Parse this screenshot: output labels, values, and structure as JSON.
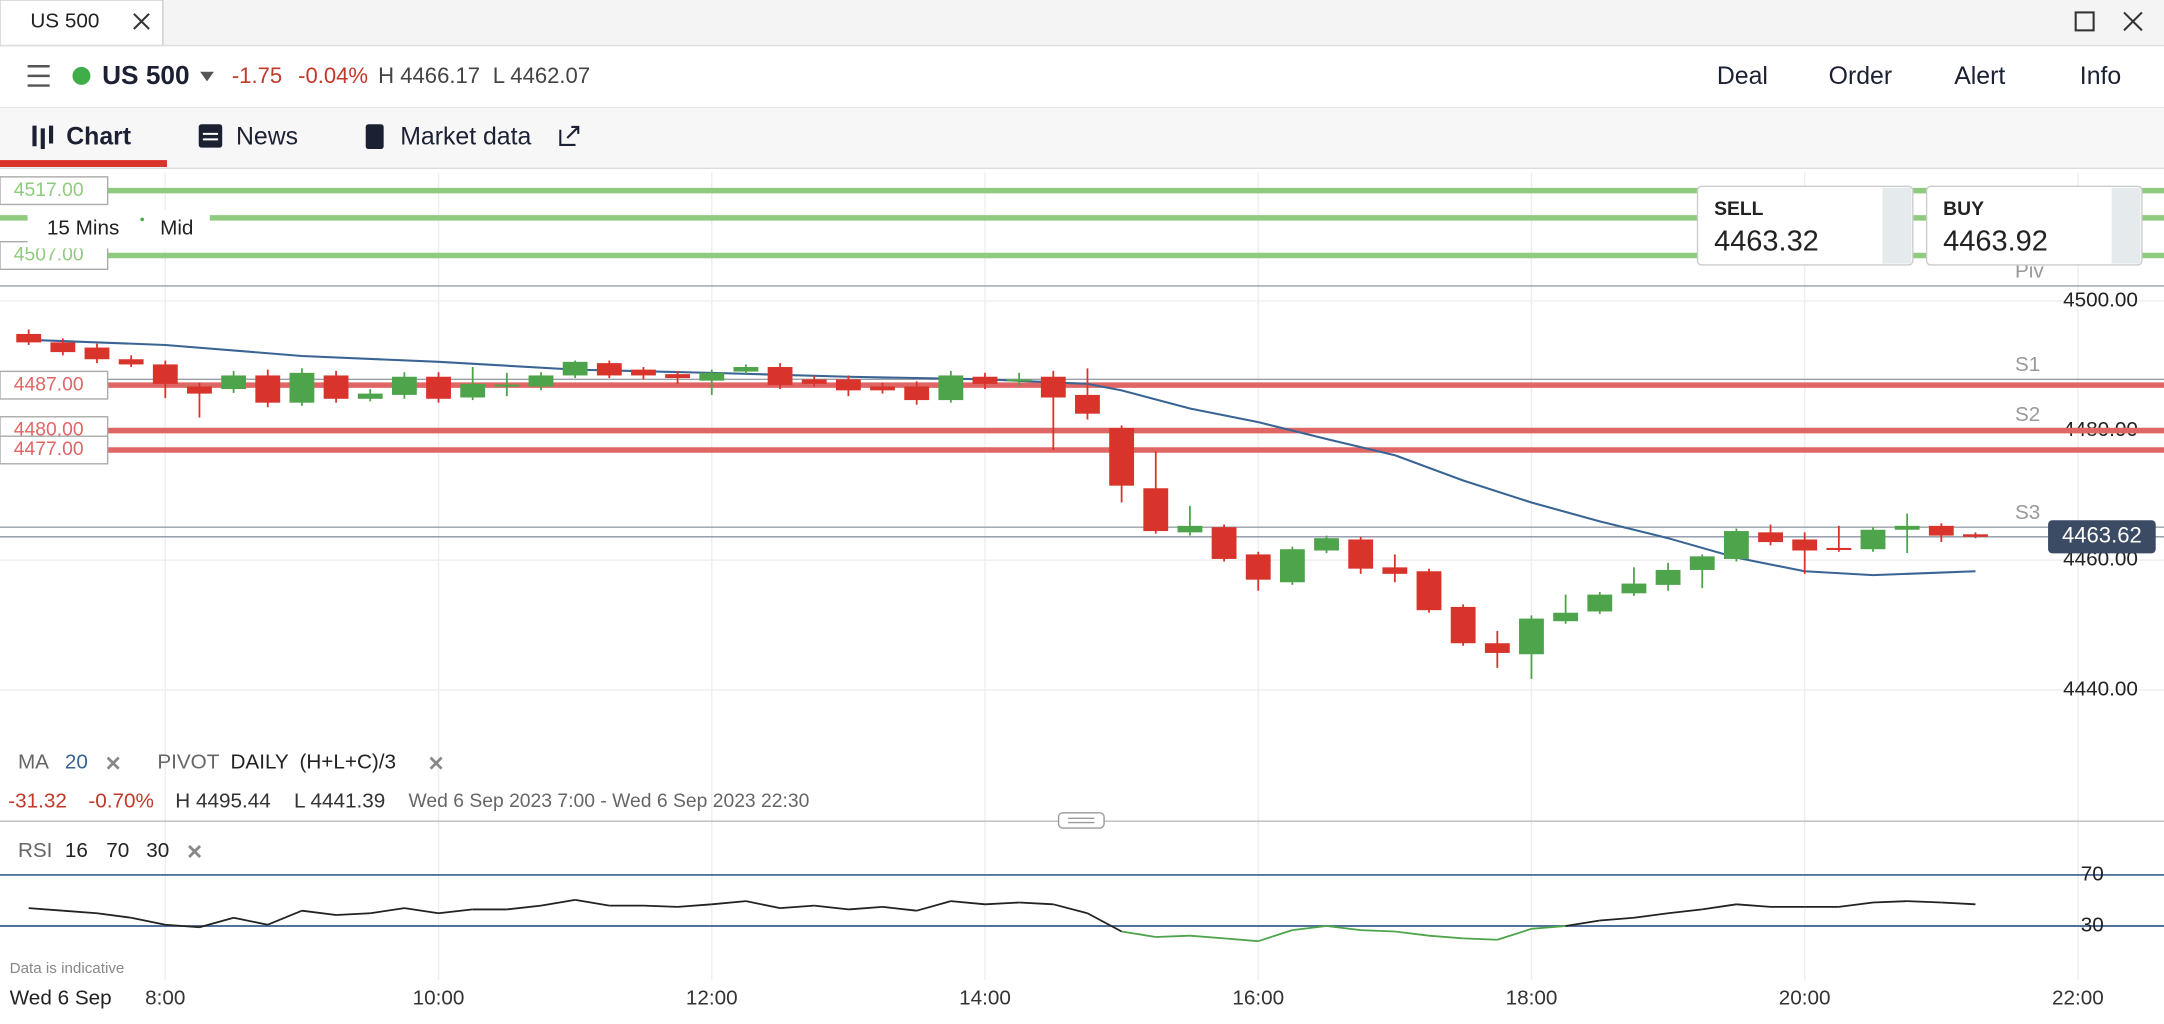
{
  "tab": {
    "title": "US 500"
  },
  "header": {
    "symbol": "US 500",
    "change": "-1.75",
    "change_pct": "-0.04%",
    "high": "H 4466.17",
    "low": "L 4462.07",
    "actions": [
      "Deal",
      "Order",
      "Alert",
      "Info"
    ]
  },
  "nav": [
    "Chart",
    "News",
    "Market data"
  ],
  "toolbar": {
    "interval": "15 Mins",
    "price_type": "Mid"
  },
  "quote": {
    "sell_label": "SELL",
    "sell": "4463.32",
    "buy_label": "BUY",
    "buy": "4463.92"
  },
  "summary": {
    "change": "-31.32",
    "change_pct": "-0.70%",
    "high": "H 4495.44",
    "low": "L 4441.39",
    "range": "Wed 6 Sep 2023 7:00 - Wed 6 Sep 2023 22:30"
  },
  "footer": {
    "note": "Data is indicative",
    "date": "Wed 6 Sep"
  },
  "chart_data": [
    {
      "type": "candlestick",
      "up_color": "#4ea44a",
      "down_color": "#d9342b",
      "x": [
        7,
        7.25,
        7.5,
        7.75,
        8,
        8.25,
        8.5,
        8.75,
        9,
        9.25,
        9.5,
        9.75,
        10,
        10.25,
        10.5,
        10.75,
        11,
        11.25,
        11.5,
        11.75,
        12,
        12.25,
        12.5,
        12.75,
        13,
        13.25,
        13.5,
        13.75,
        14,
        14.25,
        14.5,
        14.75,
        15,
        15.25,
        15.5,
        15.75,
        16,
        16.25,
        16.5,
        16.75,
        17,
        17.25,
        17.5,
        17.75,
        18,
        18.25,
        18.5,
        18.75,
        19,
        19.25,
        19.5,
        19.75,
        20,
        20.25,
        20.5,
        20.75,
        21,
        21.25
      ],
      "open": [
        4494.9,
        4493.6,
        4492.8,
        4491.0,
        4490.2,
        4486.8,
        4486.4,
        4488.5,
        4484.3,
        4488.5,
        4484.9,
        4485.5,
        4488.3,
        4485.1,
        4487.0,
        4486.8,
        4488.5,
        4490.4,
        4489.4,
        4488.7,
        4487.7,
        4489.1,
        4489.8,
        4487.9,
        4487.9,
        4486.8,
        4486.8,
        4484.7,
        4488.3,
        4487.6,
        4488.3,
        4485.5,
        4480.4,
        4471.1,
        4464.3,
        4465.1,
        4460.9,
        4456.6,
        4461.5,
        4463.2,
        4458.9,
        4458.3,
        4452.8,
        4447.2,
        4445.5,
        4450.6,
        4452.1,
        4454.9,
        4456.2,
        4458.5,
        4460.2,
        4464.3,
        4463.2,
        4461.9,
        4461.7,
        4464.7,
        4465.3,
        4464.0
      ],
      "high": [
        4495.6,
        4494.2,
        4493.4,
        4491.6,
        4490.8,
        4487.4,
        4489.2,
        4489.4,
        4489.6,
        4489.2,
        4486.4,
        4489.0,
        4489.0,
        4489.8,
        4488.9,
        4489.0,
        4490.8,
        4490.8,
        4489.8,
        4489.2,
        4489.4,
        4490.2,
        4490.4,
        4488.5,
        4488.5,
        4487.4,
        4487.6,
        4489.2,
        4488.9,
        4488.9,
        4489.2,
        4489.6,
        4480.8,
        4476.8,
        4468.4,
        4465.5,
        4461.3,
        4462.1,
        4463.8,
        4463.6,
        4460.9,
        4458.7,
        4453.2,
        4449.1,
        4451.5,
        4454.7,
        4455.1,
        4458.9,
        4459.6,
        4460.9,
        4464.9,
        4465.5,
        4464.3,
        4465.3,
        4465.1,
        4467.2,
        4465.7,
        4464.3
      ],
      "low": [
        4493.2,
        4491.6,
        4490.4,
        4489.8,
        4485.0,
        4482.0,
        4485.8,
        4483.6,
        4483.8,
        4484.3,
        4484.5,
        4484.9,
        4484.3,
        4484.7,
        4485.3,
        4486.2,
        4488.1,
        4488.1,
        4487.9,
        4487.2,
        4485.5,
        4488.7,
        4486.4,
        4486.8,
        4485.3,
        4485.7,
        4484.0,
        4484.3,
        4486.4,
        4487.0,
        4477.0,
        4481.7,
        4468.9,
        4464.1,
        4463.8,
        4459.8,
        4455.3,
        4456.2,
        4461.1,
        4457.9,
        4456.6,
        4451.9,
        4446.8,
        4443.4,
        4441.7,
        4450.2,
        4451.7,
        4454.5,
        4455.3,
        4455.7,
        4459.8,
        4462.3,
        4457.9,
        4461.3,
        4461.3,
        4461.1,
        4462.8,
        4463.4
      ],
      "close": [
        4493.6,
        4492.1,
        4491.0,
        4490.2,
        4487.2,
        4485.7,
        4488.5,
        4484.3,
        4488.9,
        4484.9,
        4485.7,
        4488.3,
        4484.9,
        4487.2,
        4487.1,
        4488.5,
        4490.6,
        4488.5,
        4488.5,
        4488.1,
        4488.9,
        4489.8,
        4487.0,
        4487.2,
        4486.2,
        4486.2,
        4484.7,
        4488.5,
        4487.2,
        4487.9,
        4485.1,
        4482.6,
        4471.5,
        4464.5,
        4465.3,
        4460.2,
        4457.0,
        4461.7,
        4463.4,
        4458.7,
        4457.9,
        4452.3,
        4447.2,
        4445.7,
        4451.0,
        4451.9,
        4454.7,
        4456.4,
        4458.5,
        4460.6,
        4464.5,
        4462.8,
        4461.5,
        4461.7,
        4464.7,
        4465.3,
        4463.8,
        4463.6
      ],
      "ma": {
        "color": "#3a6493",
        "x": [
          7,
          8,
          9,
          10,
          11,
          12,
          13,
          14,
          14.75,
          15,
          15.5,
          16,
          16.5,
          17,
          17.5,
          18,
          18.5,
          19,
          19.5,
          20,
          20.5,
          21,
          21.25
        ],
        "values": [
          4494.0,
          4493.2,
          4491.5,
          4490.6,
          4489.4,
          4488.9,
          4488.3,
          4487.9,
          4487.2,
          4486.2,
          4483.4,
          4481.3,
          4478.7,
          4476.2,
          4472.3,
          4468.9,
          4466.0,
          4463.4,
          4460.4,
          4458.3,
          4457.7,
          4458.1,
          4458.3
        ]
      },
      "indicators": [
        {
          "name": "MA",
          "params": [
            20
          ]
        },
        {
          "name": "PIVOT",
          "params": [
            "DAILY",
            "(H+L+C)/3"
          ]
        }
      ],
      "levels": [
        {
          "value": 4517,
          "label": "4517.00",
          "color": "#8fcb7f"
        },
        {
          "value": 4512.8,
          "color": "#8fcb7f"
        },
        {
          "value": 4507,
          "label": "4507.00",
          "color": "#8fcb7f"
        },
        {
          "value": 4487,
          "label": "4487.00",
          "color": "#e06666"
        },
        {
          "value": 4480,
          "label": "4480.00",
          "color": "#e06666"
        },
        {
          "value": 4477,
          "label": "4477.00",
          "color": "#e06666"
        }
      ],
      "pivots": [
        {
          "name": "Piv",
          "value": 4502.3
        },
        {
          "name": "S1",
          "value": 4487.9
        },
        {
          "name": "S2",
          "value": 4480.2
        },
        {
          "name": "S3",
          "value": 4465.1
        }
      ],
      "last_price": {
        "value": 4463.62,
        "label": "4463.62"
      },
      "xlim": [
        6.79,
        22.63
      ],
      "xticks": [
        {
          "value": 8,
          "label": "8:00"
        },
        {
          "value": 10,
          "label": "10:00"
        },
        {
          "value": 12,
          "label": "12:00"
        },
        {
          "value": 14,
          "label": "14:00"
        },
        {
          "value": 16,
          "label": "16:00"
        },
        {
          "value": 18,
          "label": "18:00"
        },
        {
          "value": 20,
          "label": "20:00"
        },
        {
          "value": 22,
          "label": "22:00"
        }
      ],
      "ylim": [
        4420.4,
        4519.8
      ],
      "yticks": [
        {
          "value": 4500,
          "label": "4500.00"
        },
        {
          "value": 4480,
          "label": "4480.00"
        },
        {
          "value": 4460,
          "label": "4460.00"
        },
        {
          "value": 4440,
          "label": "4440.00"
        }
      ],
      "grid": true
    },
    {
      "type": "line",
      "name": "RSI",
      "params": [
        16,
        70,
        30
      ],
      "color": "#222222",
      "oversold_color": "#4ea44a",
      "level_color": "#3a5f8a",
      "x": [
        7,
        7.25,
        7.5,
        7.75,
        8,
        8.25,
        8.5,
        8.75,
        9,
        9.25,
        9.5,
        9.75,
        10,
        10.25,
        10.5,
        10.75,
        11,
        11.25,
        11.5,
        11.75,
        12,
        12.25,
        12.5,
        12.75,
        13,
        13.25,
        13.5,
        13.75,
        14,
        14.25,
        14.5,
        14.75,
        15,
        15.25,
        15.5,
        15.75,
        16,
        16.25,
        16.5,
        16.75,
        17,
        17.25,
        17.5,
        17.75,
        18,
        18.25,
        18.5,
        18.75,
        19,
        19.25,
        19.5,
        19.75,
        20,
        20.25,
        20.5,
        20.75,
        21,
        21.25
      ],
      "values": [
        44,
        42,
        40,
        36.5,
        31,
        29,
        36.5,
        31,
        42,
        38.6,
        40,
        44,
        40,
        43,
        43,
        46,
        50.5,
        46,
        46,
        45,
        47,
        49.5,
        44,
        46,
        43,
        45,
        42,
        49.5,
        47,
        48.4,
        47,
        40,
        25.7,
        21.4,
        22.4,
        20.3,
        18.1,
        26.8,
        30,
        26.8,
        25.7,
        22.4,
        20.3,
        19.2,
        27.8,
        30,
        34.3,
        36.5,
        40,
        43,
        47,
        45,
        45,
        45,
        48.4,
        49.5,
        48.4,
        47
      ],
      "ylim": [
        -12.2,
        106.8
      ],
      "yticks": [
        70,
        30
      ]
    }
  ]
}
